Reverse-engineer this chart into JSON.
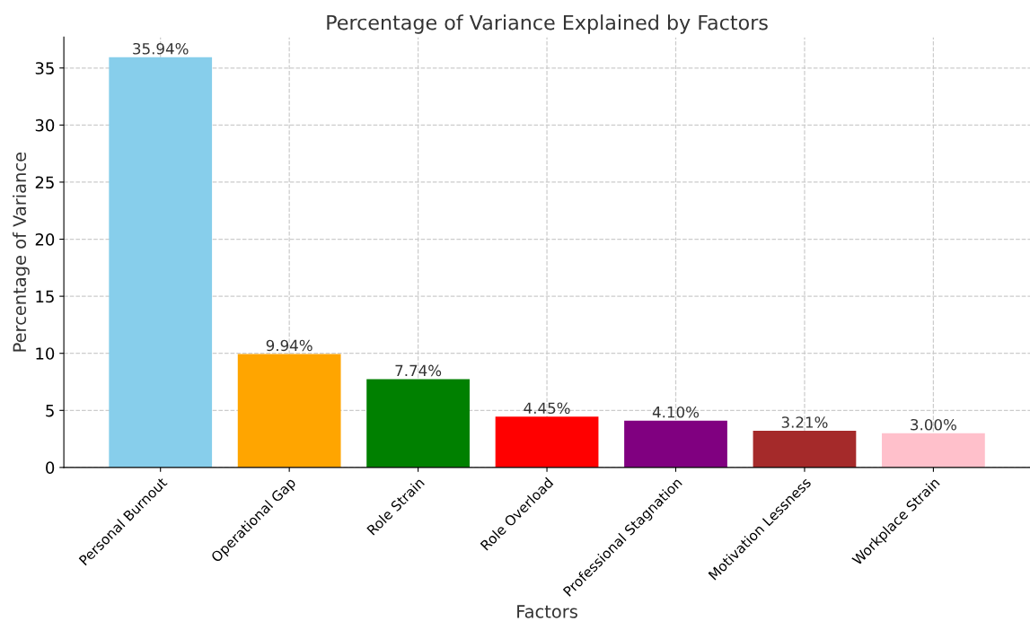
{
  "chart_data": {
    "type": "bar",
    "title": "Percentage of Variance Explained by Factors",
    "xlabel": "Factors",
    "ylabel": "Percentage of Variance",
    "categories": [
      "Personal Burnout",
      "Operational Gap",
      "Role Strain",
      "Role Overload",
      "Professional Stagnation",
      "Motivation Lessness",
      "Workplace Strain"
    ],
    "values": [
      35.94,
      9.94,
      7.74,
      4.45,
      4.1,
      3.21,
      3.0
    ],
    "colors": [
      "#87ceeb",
      "#ffa500",
      "#008000",
      "#ff0000",
      "#800080",
      "#a52a2a",
      "#ffc0cb"
    ],
    "value_labels": [
      "35.94%",
      "9.94%",
      "7.74%",
      "4.45%",
      "4.10%",
      "3.21%",
      "3.00%"
    ],
    "ylim": [
      0,
      37.7
    ],
    "yticks": [
      0,
      5,
      10,
      15,
      20,
      25,
      30,
      35
    ],
    "grid": true
  }
}
